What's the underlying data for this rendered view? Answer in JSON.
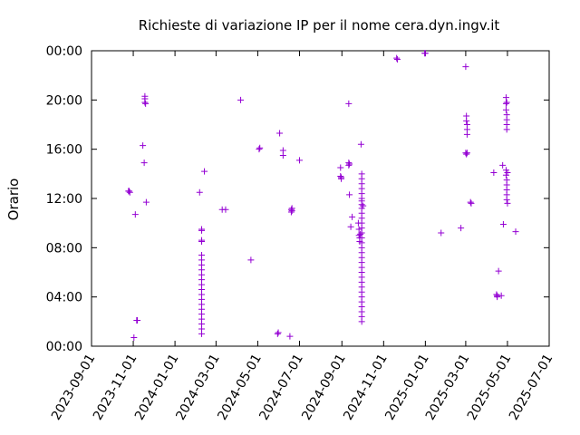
{
  "chart_data": {
    "type": "scatter",
    "title": "Richieste di variazione IP per il nome cera.dyn.ingv.it",
    "xlabel": "",
    "ylabel": "Orario",
    "x_ticks": [
      "2023-09-01",
      "2023-11-01",
      "2024-01-01",
      "2024-03-01",
      "2024-05-01",
      "2024-07-01",
      "2024-09-01",
      "2024-11-01",
      "2025-01-01",
      "2025-03-01",
      "2025-05-01",
      "2025-07-01"
    ],
    "y_ticks": [
      "00:00",
      "04:00",
      "08:00",
      "12:00",
      "16:00",
      "20:00",
      "00:00"
    ],
    "xlim": [
      "2023-09-01",
      "2025-07-01"
    ],
    "ylim_hours": [
      0,
      24
    ],
    "grid": false,
    "legend": "none",
    "marker": "+",
    "marker_color": "#9400d3",
    "points": [
      [
        "2023-10-25",
        12.6
      ],
      [
        "2023-10-26",
        12.6
      ],
      [
        "2023-10-27",
        12.5
      ],
      [
        "2023-11-04",
        10.7
      ],
      [
        "2023-11-02",
        0.7
      ],
      [
        "2023-11-06",
        2.1
      ],
      [
        "2023-11-07",
        2.1
      ],
      [
        "2023-11-15",
        16.3
      ],
      [
        "2023-11-17",
        14.9
      ],
      [
        "2023-11-18",
        20.1
      ],
      [
        "2023-11-18",
        20.3
      ],
      [
        "2023-11-18",
        19.8
      ],
      [
        "2023-11-19",
        19.7
      ],
      [
        "2023-11-20",
        11.7
      ],
      [
        "2024-02-06",
        12.5
      ],
      [
        "2024-02-09",
        9.5
      ],
      [
        "2024-02-09",
        9.4
      ],
      [
        "2024-02-09",
        8.6
      ],
      [
        "2024-02-09",
        8.5
      ],
      [
        "2024-02-09",
        7.4
      ],
      [
        "2024-02-09",
        7.0
      ],
      [
        "2024-02-09",
        6.6
      ],
      [
        "2024-02-09",
        6.2
      ],
      [
        "2024-02-09",
        5.8
      ],
      [
        "2024-02-09",
        5.4
      ],
      [
        "2024-02-09",
        5.0
      ],
      [
        "2024-02-09",
        4.6
      ],
      [
        "2024-02-09",
        4.2
      ],
      [
        "2024-02-09",
        3.8
      ],
      [
        "2024-02-09",
        3.4
      ],
      [
        "2024-02-09",
        3.0
      ],
      [
        "2024-02-09",
        2.6
      ],
      [
        "2024-02-09",
        2.2
      ],
      [
        "2024-02-09",
        1.8
      ],
      [
        "2024-02-09",
        1.4
      ],
      [
        "2024-02-09",
        1.0
      ],
      [
        "2024-02-13",
        14.2
      ],
      [
        "2024-03-10",
        11.1
      ],
      [
        "2024-03-15",
        11.1
      ],
      [
        "2024-04-06",
        20.0
      ],
      [
        "2024-04-21",
        7.0
      ],
      [
        "2024-05-03",
        16.0
      ],
      [
        "2024-05-04",
        16.1
      ],
      [
        "2024-05-30",
        1.0
      ],
      [
        "2024-05-31",
        1.1
      ],
      [
        "2024-06-02",
        17.3
      ],
      [
        "2024-06-07",
        15.9
      ],
      [
        "2024-06-07",
        15.5
      ],
      [
        "2024-06-17",
        0.8
      ],
      [
        "2024-06-19",
        11.1
      ],
      [
        "2024-06-19",
        10.9
      ],
      [
        "2024-06-20",
        11.0
      ],
      [
        "2024-06-20",
        11.2
      ],
      [
        "2024-07-01",
        15.1
      ],
      [
        "2024-08-30",
        14.5
      ],
      [
        "2024-08-30",
        13.8
      ],
      [
        "2024-08-31",
        13.6
      ],
      [
        "2024-08-31",
        13.7
      ],
      [
        "2024-09-11",
        19.7
      ],
      [
        "2024-09-11",
        14.9
      ],
      [
        "2024-09-11",
        14.7
      ],
      [
        "2024-09-12",
        14.8
      ],
      [
        "2024-09-12",
        12.3
      ],
      [
        "2024-09-14",
        9.7
      ],
      [
        "2024-09-16",
        10.5
      ],
      [
        "2024-09-25",
        10.0
      ],
      [
        "2024-09-26",
        9.5
      ],
      [
        "2024-09-26",
        9.0
      ],
      [
        "2024-09-27",
        8.8
      ],
      [
        "2024-09-27",
        8.5
      ],
      [
        "2024-09-28",
        9.1
      ],
      [
        "2024-09-29",
        16.4
      ],
      [
        "2024-09-30",
        14.0
      ],
      [
        "2024-09-30",
        13.6
      ],
      [
        "2024-09-30",
        13.2
      ],
      [
        "2024-09-30",
        12.8
      ],
      [
        "2024-09-30",
        12.4
      ],
      [
        "2024-09-30",
        12.0
      ],
      [
        "2024-09-30",
        11.8
      ],
      [
        "2024-09-30",
        11.5
      ],
      [
        "2024-09-30",
        11.2
      ],
      [
        "2024-09-30",
        10.8
      ],
      [
        "2024-09-30",
        10.4
      ],
      [
        "2024-09-30",
        10.0
      ],
      [
        "2024-09-30",
        9.6
      ],
      [
        "2024-09-30",
        9.2
      ],
      [
        "2024-09-30",
        8.8
      ],
      [
        "2024-09-30",
        8.4
      ],
      [
        "2024-09-30",
        8.0
      ],
      [
        "2024-09-30",
        7.6
      ],
      [
        "2024-09-30",
        7.2
      ],
      [
        "2024-09-30",
        6.8
      ],
      [
        "2024-09-30",
        6.4
      ],
      [
        "2024-09-30",
        6.0
      ],
      [
        "2024-09-30",
        5.6
      ],
      [
        "2024-09-30",
        5.2
      ],
      [
        "2024-09-30",
        4.8
      ],
      [
        "2024-09-30",
        4.4
      ],
      [
        "2024-09-30",
        4.0
      ],
      [
        "2024-09-30",
        3.6
      ],
      [
        "2024-09-30",
        3.2
      ],
      [
        "2024-09-30",
        2.8
      ],
      [
        "2024-09-30",
        2.4
      ],
      [
        "2024-09-30",
        2.0
      ],
      [
        "2024-10-02",
        11.4
      ],
      [
        "2024-11-20",
        23.4
      ],
      [
        "2024-11-21",
        23.3
      ],
      [
        "2024-12-31",
        23.8
      ],
      [
        "2025-01-01",
        23.8
      ],
      [
        "2025-01-24",
        9.2
      ],
      [
        "2025-02-22",
        9.6
      ],
      [
        "2025-03-01",
        22.7
      ],
      [
        "2025-03-02",
        18.7
      ],
      [
        "2025-03-02",
        18.3
      ],
      [
        "2025-03-03",
        18.0
      ],
      [
        "2025-03-03",
        17.6
      ],
      [
        "2025-03-03",
        17.2
      ],
      [
        "2025-03-01",
        15.7
      ],
      [
        "2025-03-02",
        15.6
      ],
      [
        "2025-03-03",
        15.7
      ],
      [
        "2025-03-08",
        11.7
      ],
      [
        "2025-03-09",
        11.6
      ],
      [
        "2025-04-11",
        14.1
      ],
      [
        "2025-04-15",
        4.2
      ],
      [
        "2025-04-16",
        4.1
      ],
      [
        "2025-04-16",
        4.0
      ],
      [
        "2025-04-18",
        6.1
      ],
      [
        "2025-04-22",
        4.1
      ],
      [
        "2025-04-24",
        14.7
      ],
      [
        "2025-04-25",
        9.9
      ],
      [
        "2025-04-29",
        20.2
      ],
      [
        "2025-04-29",
        19.7
      ],
      [
        "2025-04-29",
        19.2
      ],
      [
        "2025-04-30",
        18.8
      ],
      [
        "2025-04-30",
        18.4
      ],
      [
        "2025-04-30",
        18.0
      ],
      [
        "2025-04-30",
        17.6
      ],
      [
        "2025-04-30",
        19.8
      ],
      [
        "2025-04-29",
        14.3
      ],
      [
        "2025-04-29",
        13.9
      ],
      [
        "2025-04-30",
        13.5
      ],
      [
        "2025-04-30",
        13.1
      ],
      [
        "2025-04-30",
        12.7
      ],
      [
        "2025-04-30",
        12.3
      ],
      [
        "2025-04-30",
        11.9
      ],
      [
        "2025-05-01",
        11.6
      ],
      [
        "2025-05-01",
        14.1
      ],
      [
        "2025-05-13",
        9.3
      ]
    ]
  }
}
